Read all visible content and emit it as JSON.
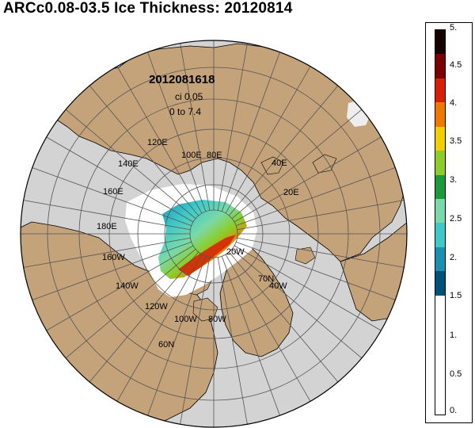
{
  "title": "ARCc0.08-03.5 Ice Thickness: 20120814",
  "annotation": {
    "run_stamp": "2012081618",
    "contour_interval": "ci 0.05",
    "range": "0 to 7.4"
  },
  "grid_labels": [
    "120E",
    "100E",
    "80E",
    "140E",
    "40E",
    "160E",
    "20E",
    "180E",
    "160W",
    "20W",
    "140W",
    "70N",
    "40W",
    "120W",
    "100W",
    "80W",
    "60N"
  ],
  "colorbar": {
    "ticks": [
      "5.",
      "4.5",
      "4.",
      "3.5",
      "3.",
      "2.5",
      "2.",
      "1.5",
      "1.",
      "0.5",
      "0."
    ],
    "colors": [
      "#ffffff",
      "#00507a",
      "#1a8fb0",
      "#3ec8c8",
      "#7ad9a8",
      "#1a9a3a",
      "#8ccd28",
      "#f0d000",
      "#f07800",
      "#d81e05",
      "#7a0000",
      "#1a0000"
    ]
  },
  "colors": {
    "land": "#c4a27a",
    "ocean": "#d3d3d3",
    "open_water": "#ffffff",
    "grid": "#555555"
  }
}
